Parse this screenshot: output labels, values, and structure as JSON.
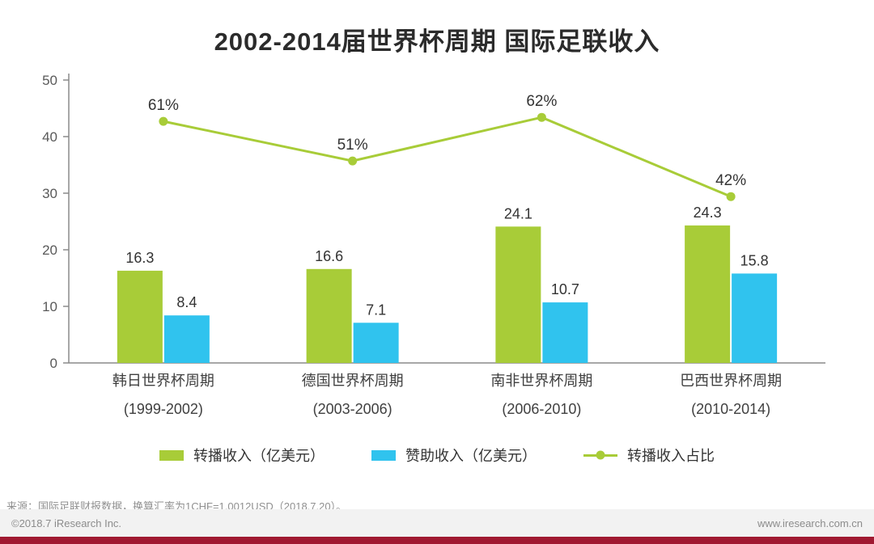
{
  "title": "2002-2014届世界杯周期 国际足联收入",
  "chart_data": {
    "type": "bar",
    "categories": [
      "韩日世界杯周期",
      "德国世界杯周期",
      "南非世界杯周期",
      "巴西世界杯周期"
    ],
    "category_sublabels": [
      "(1999-2002)",
      "(2003-2006)",
      "(2006-2010)",
      "(2010-2014)"
    ],
    "series": [
      {
        "name": "转播收入（亿美元）",
        "type": "bar",
        "color": "#a8cc38",
        "values": [
          16.3,
          16.6,
          24.1,
          24.3
        ]
      },
      {
        "name": "赞助收入（亿美元）",
        "type": "bar",
        "color": "#30c3ee",
        "values": [
          8.4,
          7.1,
          10.7,
          15.8
        ]
      },
      {
        "name": "转播收入占比",
        "type": "line",
        "color": "#a8cc38",
        "values_pct": [
          61,
          51,
          62,
          42
        ],
        "labels": [
          "61%",
          "51%",
          "62%",
          "42%"
        ]
      }
    ],
    "ylim": [
      0,
      50
    ],
    "yticks": [
      0,
      10,
      20,
      30,
      40,
      50
    ],
    "line_pct_to_primary_ratio": 0.7,
    "grid": false,
    "legend_position": "bottom"
  },
  "colors": {
    "bar_green": "#a8cc38",
    "bar_cyan": "#30c3ee",
    "axis": "#8a8a8a",
    "label_text": "#333333",
    "footer_strip_red": "#a01931"
  },
  "footer": {
    "source": "来源：国际足联财报数据，换算汇率为1CHF=1.0012USD（2018.7.20）。",
    "copyright": "©2018.7 iResearch Inc.",
    "website": "www.iresearch.com.cn"
  }
}
